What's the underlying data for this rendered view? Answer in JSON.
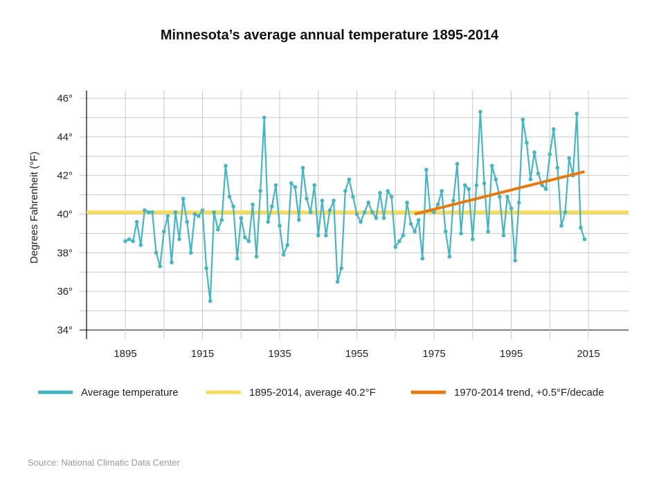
{
  "chart_data": {
    "type": "line",
    "title": "Minnesota’s average annual temperature 1895-2014",
    "xlabel": "",
    "ylabel": "Degrees Fahrenheit (°F)",
    "xlim": [
      1885,
      2025
    ],
    "ylim": [
      33.5,
      46.4
    ],
    "x_ticks": [
      1895,
      1915,
      1935,
      1955,
      1975,
      1995,
      2015
    ],
    "x_tick_labels": [
      "1895",
      "1915",
      "1935",
      "1955",
      "1975",
      "1995",
      "2015"
    ],
    "y_ticks": [
      34,
      36,
      38,
      40,
      42,
      44,
      46
    ],
    "y_tick_labels": [
      "34°",
      "36°",
      "38°",
      "40°",
      "42°",
      "44°",
      "46°"
    ],
    "grid": true,
    "legend_placement": "bottom",
    "series": [
      {
        "name": "Average temperature",
        "color": "#45b5c4",
        "x_start": 1895,
        "values": [
          38.6,
          38.7,
          38.6,
          39.6,
          38.4,
          40.2,
          40.1,
          40.1,
          38.0,
          37.3,
          39.1,
          39.9,
          37.5,
          40.1,
          38.7,
          40.8,
          39.6,
          38.0,
          40.0,
          39.9,
          40.2,
          37.2,
          35.5,
          40.1,
          39.2,
          39.7,
          42.5,
          40.9,
          40.4,
          37.7,
          39.8,
          38.8,
          38.6,
          40.5,
          37.8,
          41.2,
          45.0,
          39.6,
          40.4,
          41.5,
          39.4,
          37.9,
          38.4,
          41.6,
          41.4,
          39.7,
          42.4,
          40.8,
          40.1,
          41.5,
          38.9,
          40.7,
          38.9,
          40.2,
          40.7,
          36.5,
          37.2,
          41.2,
          41.8,
          40.9,
          40.0,
          39.6,
          40.1,
          40.6,
          40.1,
          39.8,
          41.1,
          39.8,
          41.2,
          40.9,
          38.3,
          38.6,
          38.9,
          40.6,
          39.5,
          39.1,
          39.7,
          37.7,
          42.3,
          40.2,
          40.1,
          40.5,
          41.2,
          39.1,
          37.8,
          40.7,
          42.6,
          39.0,
          41.5,
          41.3,
          38.7,
          41.5,
          45.3,
          41.6,
          39.1,
          42.5,
          41.8,
          40.9,
          38.9,
          40.9,
          40.3,
          37.6,
          40.6,
          44.9,
          43.7,
          41.8,
          43.2,
          42.1,
          41.5,
          41.3,
          43.1,
          44.4,
          42.4,
          39.4,
          40.1,
          42.9,
          42.0,
          45.2,
          39.3,
          38.7
        ]
      },
      {
        "name": "1895-2014, average 40.2°F",
        "color": "#f7dc5a",
        "type": "hline",
        "y": 40.1
      },
      {
        "name": "1970-2014 trend, +0.5°F/decade",
        "color": "#e8790f",
        "type": "trend",
        "x": [
          1970,
          2014
        ],
        "y": [
          40.0,
          42.2
        ]
      }
    ],
    "source": "Source: National Climatic Data Center"
  }
}
